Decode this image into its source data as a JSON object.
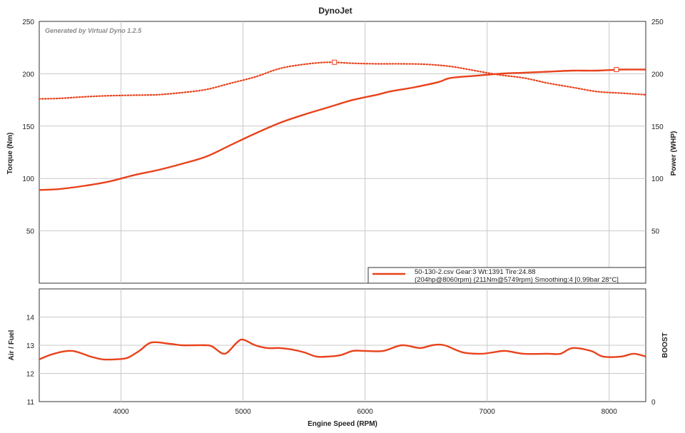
{
  "chart_data": [
    {
      "type": "line",
      "title": "DynoJet",
      "watermark": "Generated by Virtual Dyno 1.2.5",
      "xlabel": "Engine Speed (RPM)",
      "ylabel": "Torque (Nm)",
      "y2label": "Power (WHP)",
      "xlim": [
        3330,
        8300
      ],
      "ylim": [
        0,
        250
      ],
      "y2lim": [
        0,
        250
      ],
      "x_ticks": [
        4000,
        5000,
        6000,
        7000,
        8000
      ],
      "y_ticks": [
        50,
        100,
        150,
        200,
        250
      ],
      "y2_ticks": [
        50,
        100,
        150,
        200,
        250
      ],
      "grid": true,
      "color": "#e8421c",
      "legend": {
        "position": "bottom-right",
        "line1": "50-130-2.csv Gear:3 Wt:1391 Tire:24.88",
        "line2": "(204hp@8060rpm) (211Nm@5749rpm) Smoothing:4 [0.99bar 28°C]"
      },
      "series": [
        {
          "style": "dotted",
          "marker": {
            "x": 5749,
            "y": 211
          },
          "x": [
            3330,
            3500,
            3700,
            3900,
            4100,
            4300,
            4500,
            4700,
            4900,
            5100,
            5300,
            5500,
            5700,
            5900,
            6100,
            6300,
            6500,
            6700,
            6900,
            7100,
            7300,
            7500,
            7700,
            7900,
            8100,
            8300
          ],
          "y": [
            176,
            176.5,
            178,
            179,
            179.5,
            180,
            182,
            185,
            191,
            197,
            205,
            209,
            211,
            210,
            209.5,
            209.5,
            209,
            207,
            203,
            199,
            196,
            191,
            187,
            183,
            181.5,
            180
          ]
        },
        {
          "style": "solid",
          "marker": {
            "x": 8060,
            "y": 204
          },
          "x": [
            3330,
            3500,
            3700,
            3900,
            4100,
            4300,
            4500,
            4700,
            4900,
            5100,
            5300,
            5500,
            5700,
            5900,
            6100,
            6200,
            6400,
            6600,
            6700,
            6900,
            7100,
            7300,
            7500,
            7700,
            7900,
            8100,
            8300
          ],
          "y": [
            89,
            90,
            93,
            97,
            103,
            108,
            114,
            121,
            132,
            143,
            153,
            161,
            168,
            175,
            180,
            183,
            187,
            192,
            196,
            198,
            200,
            201,
            202,
            203,
            203,
            204,
            204
          ]
        }
      ]
    },
    {
      "type": "line",
      "ylabel": "Air / Fuel",
      "y2label": "BOOST",
      "xlim": [
        3330,
        8300
      ],
      "ylim": [
        11,
        15
      ],
      "y_ticks": [
        11,
        12,
        13,
        14
      ],
      "y2_ticks": [
        0
      ],
      "grid": true,
      "color": "#e8421c",
      "series": [
        {
          "style": "solid",
          "x": [
            3330,
            3450,
            3600,
            3750,
            3850,
            3950,
            4050,
            4150,
            4250,
            4400,
            4500,
            4600,
            4700,
            4750,
            4850,
            4950,
            5000,
            5100,
            5200,
            5300,
            5400,
            5500,
            5600,
            5700,
            5800,
            5900,
            6000,
            6150,
            6300,
            6450,
            6550,
            6650,
            6800,
            6950,
            7050,
            7150,
            7300,
            7500,
            7600,
            7700,
            7850,
            7950,
            8100,
            8200,
            8300
          ],
          "y": [
            12.5,
            12.7,
            12.8,
            12.6,
            12.5,
            12.5,
            12.55,
            12.8,
            13.1,
            13.05,
            13.0,
            13.0,
            13.0,
            12.95,
            12.7,
            13.1,
            13.2,
            13.0,
            12.9,
            12.9,
            12.85,
            12.75,
            12.6,
            12.6,
            12.65,
            12.8,
            12.8,
            12.8,
            13.0,
            12.9,
            13.0,
            13.0,
            12.75,
            12.7,
            12.75,
            12.8,
            12.7,
            12.7,
            12.7,
            12.9,
            12.8,
            12.6,
            12.6,
            12.7,
            12.6
          ]
        }
      ]
    }
  ]
}
